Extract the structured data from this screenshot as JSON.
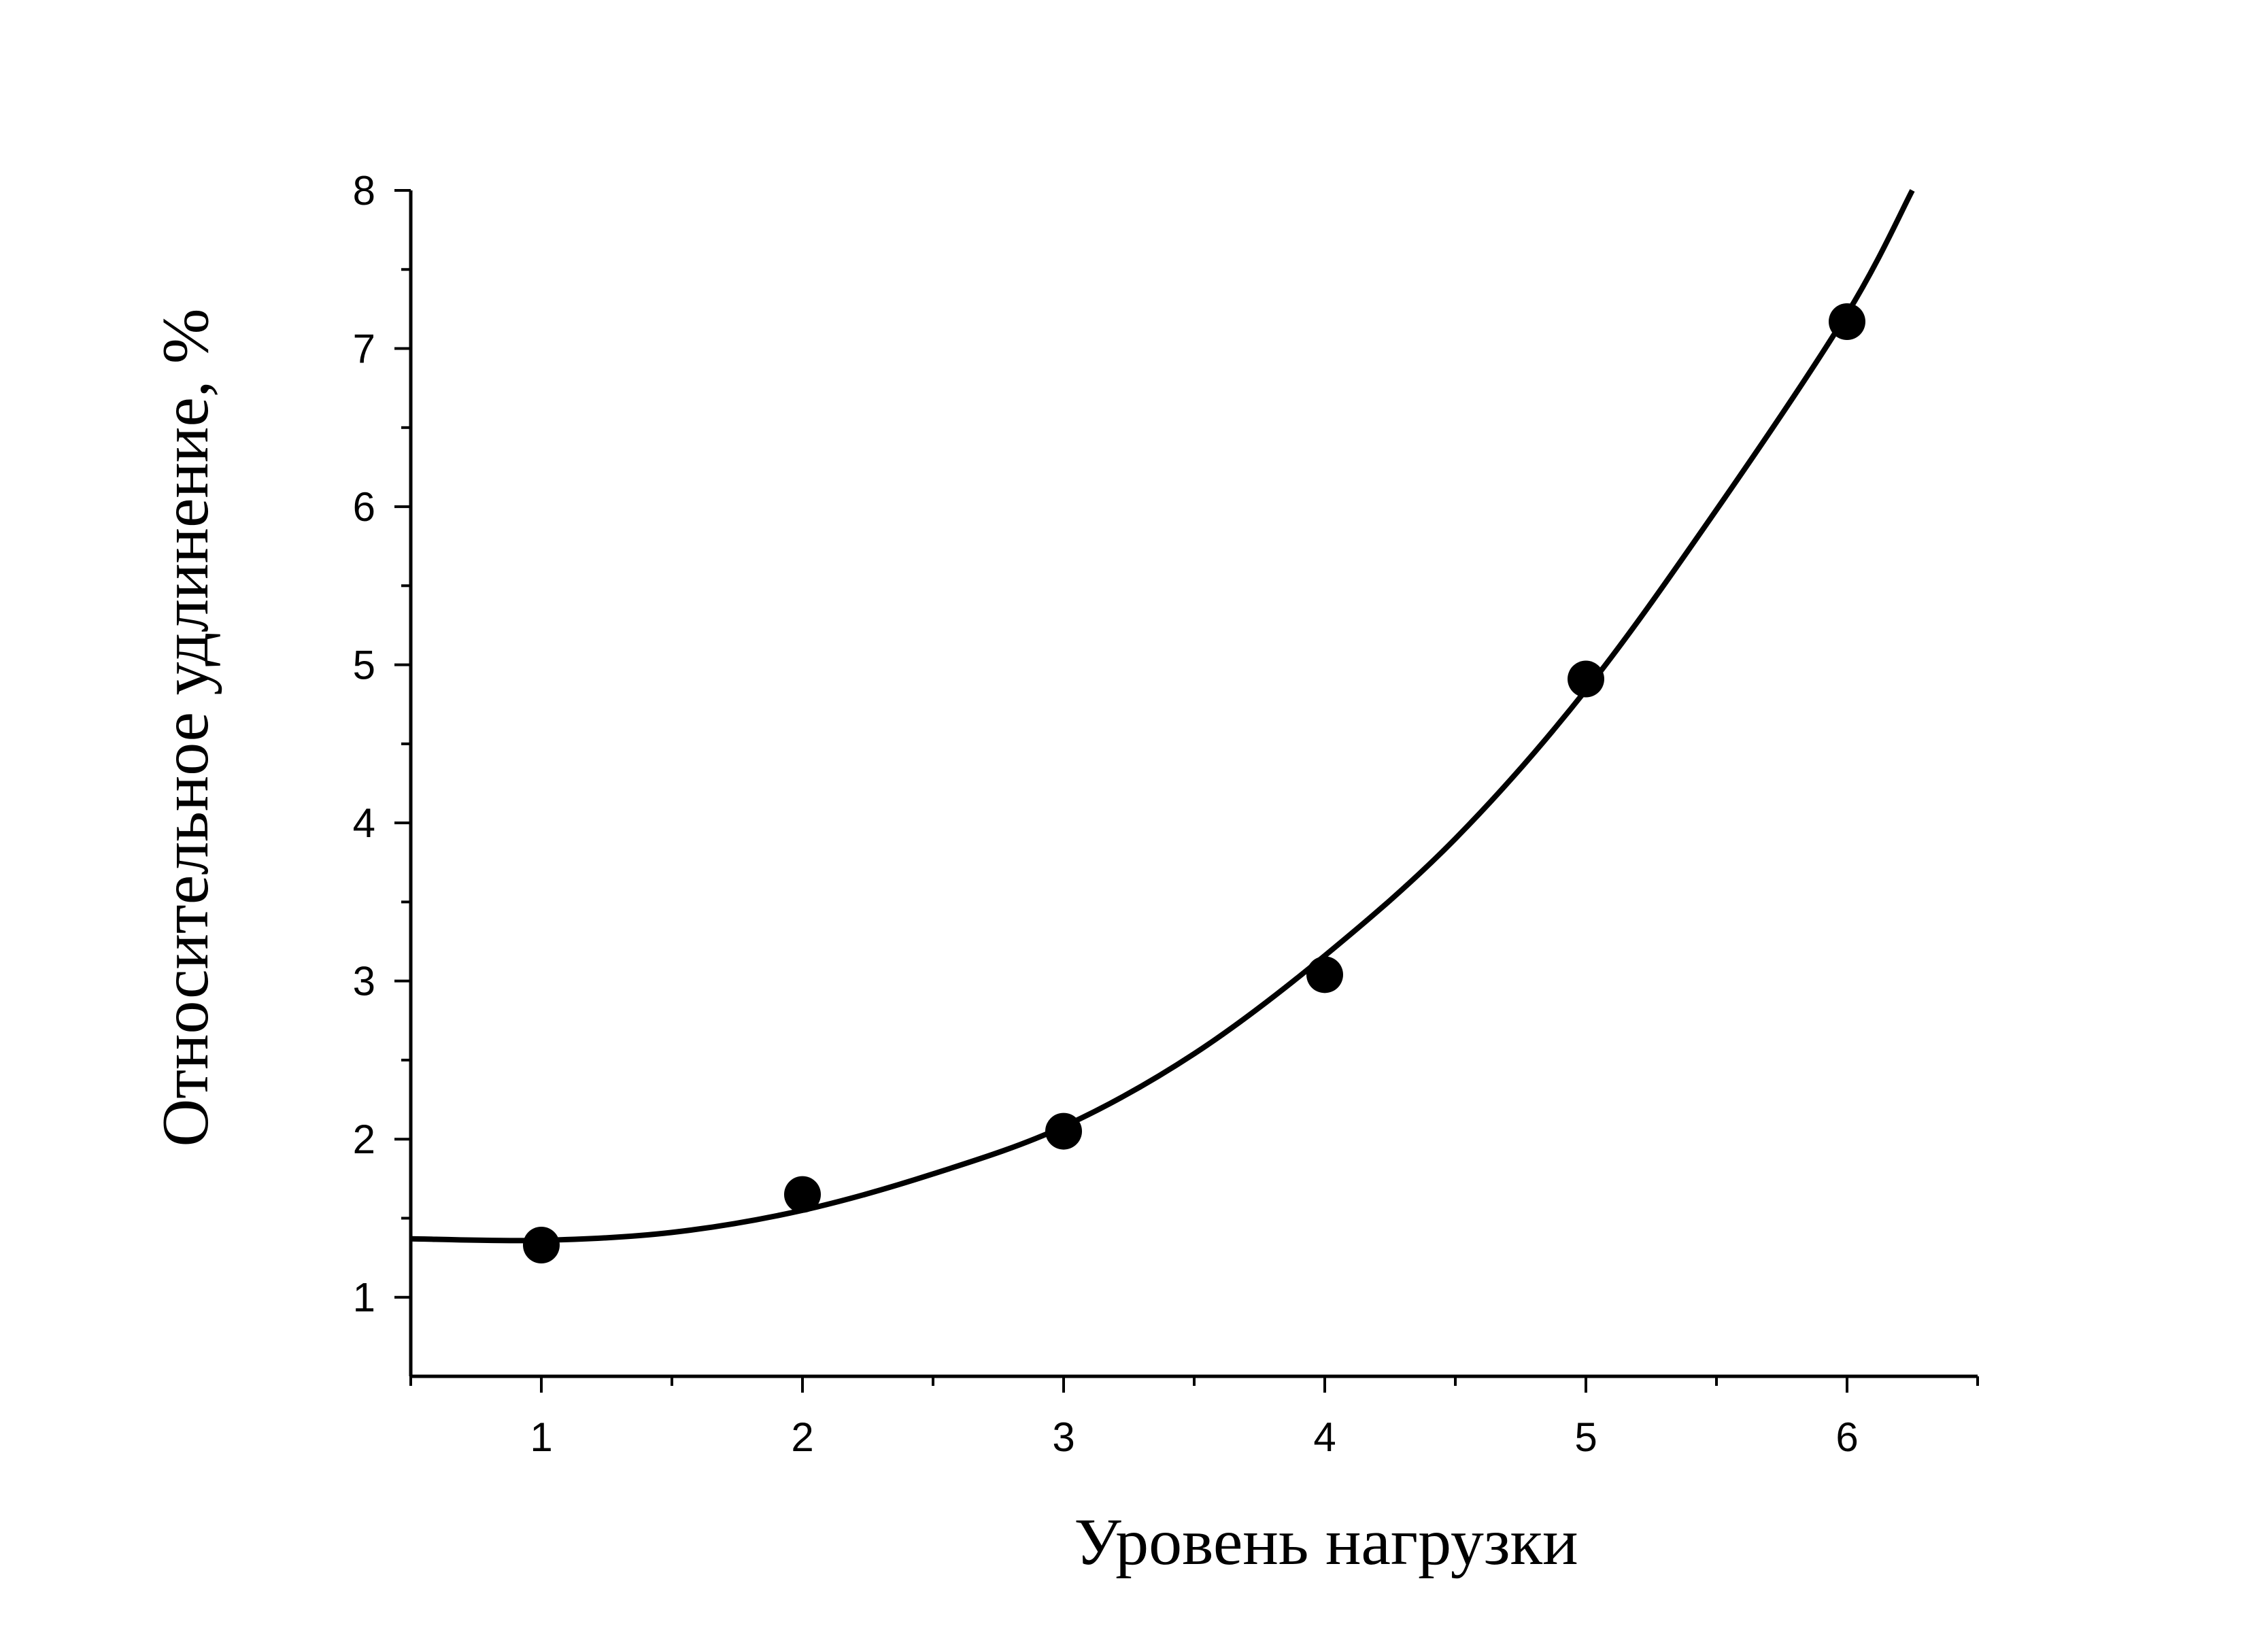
{
  "chart_data": {
    "type": "scatter",
    "title": "",
    "xlabel": "Уровень нагрузки",
    "ylabel": "Относительное удлинение, %",
    "xlim": [
      0.5,
      6.5
    ],
    "ylim": [
      0.5,
      8
    ],
    "x_ticks": [
      "1",
      "2",
      "3",
      "4",
      "5",
      "6"
    ],
    "y_ticks": [
      "1",
      "2",
      "3",
      "4",
      "5",
      "6",
      "7",
      "8"
    ],
    "grid": false,
    "legend": "none",
    "points": [
      {
        "x": 1,
        "y": 1.33
      },
      {
        "x": 2,
        "y": 1.65
      },
      {
        "x": 3,
        "y": 2.05
      },
      {
        "x": 4,
        "y": 3.04
      },
      {
        "x": 5,
        "y": 4.91
      },
      {
        "x": 6,
        "y": 7.17
      }
    ],
    "fit_curve": [
      {
        "x": 0.5,
        "y": 1.37
      },
      {
        "x": 1.0,
        "y": 1.36
      },
      {
        "x": 1.5,
        "y": 1.41
      },
      {
        "x": 2.0,
        "y": 1.55
      },
      {
        "x": 2.5,
        "y": 1.78
      },
      {
        "x": 3.0,
        "y": 2.08
      },
      {
        "x": 3.5,
        "y": 2.54
      },
      {
        "x": 4.0,
        "y": 3.16
      },
      {
        "x": 4.5,
        "y": 3.9
      },
      {
        "x": 5.0,
        "y": 4.84
      },
      {
        "x": 5.5,
        "y": 5.98
      },
      {
        "x": 6.0,
        "y": 7.22
      },
      {
        "x": 6.25,
        "y": 8.0
      }
    ],
    "colors": {
      "line": "#000000",
      "marker": "#000000"
    }
  }
}
